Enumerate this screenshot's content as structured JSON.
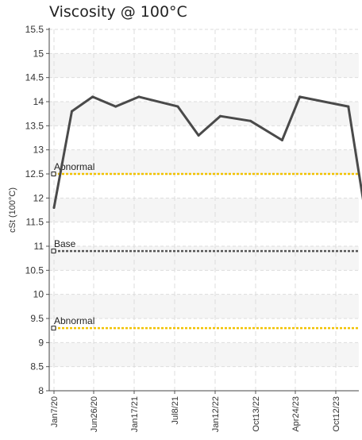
{
  "chart_data": {
    "type": "line",
    "title": "Viscosity @ 100°C",
    "ylabel": "cSt (100°C)",
    "xlabel": "",
    "ylim": [
      8,
      15.5
    ],
    "yticks": [
      8,
      8.5,
      9,
      9.5,
      10,
      10.5,
      11,
      11.5,
      12,
      12.5,
      13,
      13.5,
      14,
      14.5,
      15,
      15.5
    ],
    "xtick_labels": [
      "Jan7/20",
      "Jun26/20",
      "Jan17/21",
      "Jul8/21",
      "Jan12/22",
      "Oct13/22",
      "Apr24/23",
      "Oct12/23"
    ],
    "series": [
      {
        "color": "#4a4a4a",
        "points": [
          {
            "x": "2020-01-07",
            "y": 11.8
          },
          {
            "x": "2020-03-26",
            "y": 13.8
          },
          {
            "x": "2020-06-26",
            "y": 14.1
          },
          {
            "x": "2020-10-06",
            "y": 13.9
          },
          {
            "x": "2021-01-17",
            "y": 14.1
          },
          {
            "x": "2021-07-08",
            "y": 13.9
          },
          {
            "x": "2021-10-08",
            "y": 13.3
          },
          {
            "x": "2022-01-12",
            "y": 13.7
          },
          {
            "x": "2022-05-26",
            "y": 13.6
          },
          {
            "x": "2022-10-13",
            "y": 13.2
          },
          {
            "x": "2022-12-30",
            "y": 14.1
          },
          {
            "x": "2023-08-02",
            "y": 13.9
          },
          {
            "x": "2023-10-12",
            "y": 11.8
          },
          {
            "x": "2023-12-30",
            "y": 11.4
          }
        ]
      }
    ],
    "reference_lines": [
      {
        "label": "Abnormal",
        "value": 12.5,
        "color": "#f2c200",
        "style": "dashed"
      },
      {
        "label": "Base",
        "value": 10.9,
        "color": "#555555",
        "style": "dashed"
      },
      {
        "label": "Abnormal",
        "value": 9.3,
        "color": "#f2c200",
        "style": "dashed"
      }
    ],
    "grid": true,
    "band_colors": [
      "#f5f5f5",
      "#ffffff"
    ]
  }
}
